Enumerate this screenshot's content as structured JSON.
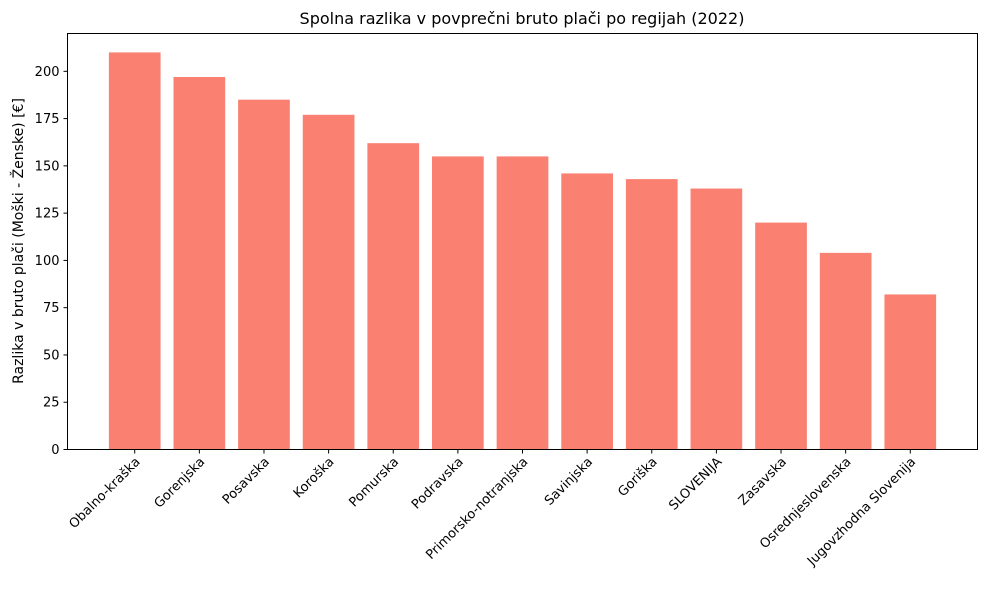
{
  "chart_data": {
    "type": "bar",
    "title": "Spolna razlika v povprečni bruto plači po regijah (2022)",
    "xlabel": "",
    "ylabel": "Razlika v bruto plači (Moški - Ženske) [€]",
    "categories": [
      "Obalno-kraška",
      "Gorenjska",
      "Posavska",
      "Koroška",
      "Pomurska",
      "Podravska",
      "Primorsko-notranjska",
      "Savinjska",
      "Goriška",
      "SLOVENIJA",
      "Zasavska",
      "Osrednjeslovenska",
      "Jugovzhodna Slovenija"
    ],
    "values": [
      210,
      197,
      185,
      177,
      162,
      155,
      155,
      146,
      143,
      138,
      120,
      104,
      82
    ],
    "ylim": [
      0,
      220
    ],
    "yticks": [
      0,
      25,
      50,
      75,
      100,
      125,
      150,
      175,
      200
    ],
    "bar_color": "#fa8072",
    "grid": false,
    "legend": "none"
  }
}
